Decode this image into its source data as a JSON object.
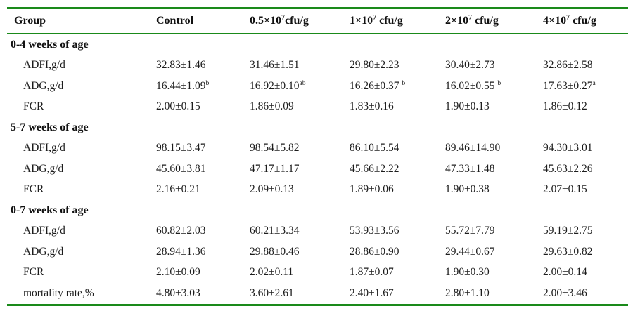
{
  "rule_color": "#1a8a1a",
  "table": {
    "columns": [
      "Group",
      "Control",
      "0.5×10{7}cfu/g",
      "1×10{7} cfu/g",
      "2×10{7} cfu/g",
      "4×10{7} cfu/g"
    ],
    "sections": [
      {
        "title": "0-4 weeks of age",
        "rows": [
          {
            "label": "ADFI,g/d",
            "values": [
              "32.83±1.46",
              "31.46±1.51",
              "29.80±2.23",
              "30.40±2.73",
              "32.86±2.58"
            ]
          },
          {
            "label": "ADG,g/d",
            "values": [
              "16.44±1.09{b}",
              "16.92±0.10{ab}",
              "16.26±0.37 {b}",
              "16.02±0.55 {b}",
              "17.63±0.27{a}"
            ]
          },
          {
            "label": "FCR",
            "values": [
              "2.00±0.15",
              "1.86±0.09",
              "1.83±0.16",
              "1.90±0.13",
              "1.86±0.12"
            ]
          }
        ]
      },
      {
        "title": "5-7 weeks of age",
        "rows": [
          {
            "label": "ADFI,g/d",
            "values": [
              "98.15±3.47",
              "98.54±5.82",
              "86.10±5.54",
              "89.46±14.90",
              "94.30±3.01"
            ]
          },
          {
            "label": "ADG,g/d",
            "values": [
              "45.60±3.81",
              "47.17±1.17",
              "45.66±2.22",
              "47.33±1.48",
              "45.63±2.26"
            ]
          },
          {
            "label": "FCR",
            "values": [
              "2.16±0.21",
              "2.09±0.13",
              "1.89±0.06",
              "1.90±0.38",
              "2.07±0.15"
            ]
          }
        ]
      },
      {
        "title": "0-7 weeks of age",
        "rows": [
          {
            "label": "ADFI,g/d",
            "values": [
              "60.82±2.03",
              "60.21±3.34",
              "53.93±3.56",
              "55.72±7.79",
              "59.19±2.75"
            ]
          },
          {
            "label": "ADG,g/d",
            "values": [
              "28.94±1.36",
              "29.88±0.46",
              "28.86±0.90",
              "29.44±0.67",
              "29.63±0.82"
            ]
          },
          {
            "label": "FCR",
            "values": [
              "2.10±0.09",
              "2.02±0.11",
              "1.87±0.07",
              "1.90±0.30",
              "2.00±0.14"
            ]
          },
          {
            "label": "mortality rate,%",
            "values": [
              "4.80±3.03",
              "3.60±2.61",
              "2.40±1.67",
              "2.80±1.10",
              "2.00±3.46"
            ]
          }
        ]
      }
    ]
  }
}
